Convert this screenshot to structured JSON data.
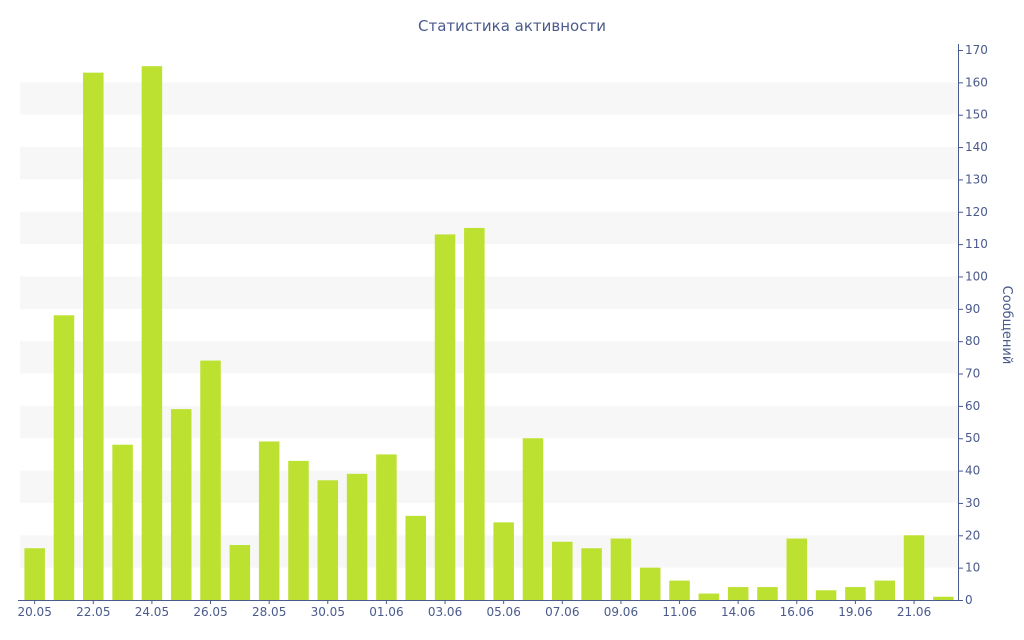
{
  "chart_data": {
    "type": "bar",
    "title": "Статистика активности",
    "ylabel": "Сообщений",
    "xlabel": "",
    "ylim": [
      0,
      170
    ],
    "y_ticks": [
      0,
      10,
      20,
      30,
      40,
      50,
      60,
      70,
      80,
      90,
      100,
      110,
      120,
      130,
      140,
      150,
      160,
      170
    ],
    "y_axis_position": "right",
    "grid": "alternating-bands",
    "x_tick_labels": [
      {
        "label": "20.05",
        "index": 0
      },
      {
        "label": "22.05",
        "index": 2
      },
      {
        "label": "24.05",
        "index": 4
      },
      {
        "label": "26.05",
        "index": 6
      },
      {
        "label": "28.05",
        "index": 8
      },
      {
        "label": "30.05",
        "index": 10
      },
      {
        "label": "01.06",
        "index": 12
      },
      {
        "label": "03.06",
        "index": 14
      },
      {
        "label": "05.06",
        "index": 16
      },
      {
        "label": "07.06",
        "index": 18
      },
      {
        "label": "09.06",
        "index": 20
      },
      {
        "label": "11.06",
        "index": 22
      },
      {
        "label": "14.06",
        "index": 24
      },
      {
        "label": "16.06",
        "index": 26
      },
      {
        "label": "19.06",
        "index": 28
      },
      {
        "label": "21.06",
        "index": 30
      }
    ],
    "values": [
      16,
      88,
      163,
      48,
      165,
      59,
      74,
      17,
      49,
      43,
      37,
      39,
      45,
      26,
      113,
      115,
      24,
      50,
      18,
      16,
      19,
      10,
      6,
      2,
      4,
      4,
      19,
      3,
      4,
      6,
      20,
      1
    ],
    "colors": {
      "bar": "#bde130",
      "band": "#f7f7f7",
      "axis": "#4a5a8c",
      "text": "#4a5a8c"
    }
  }
}
